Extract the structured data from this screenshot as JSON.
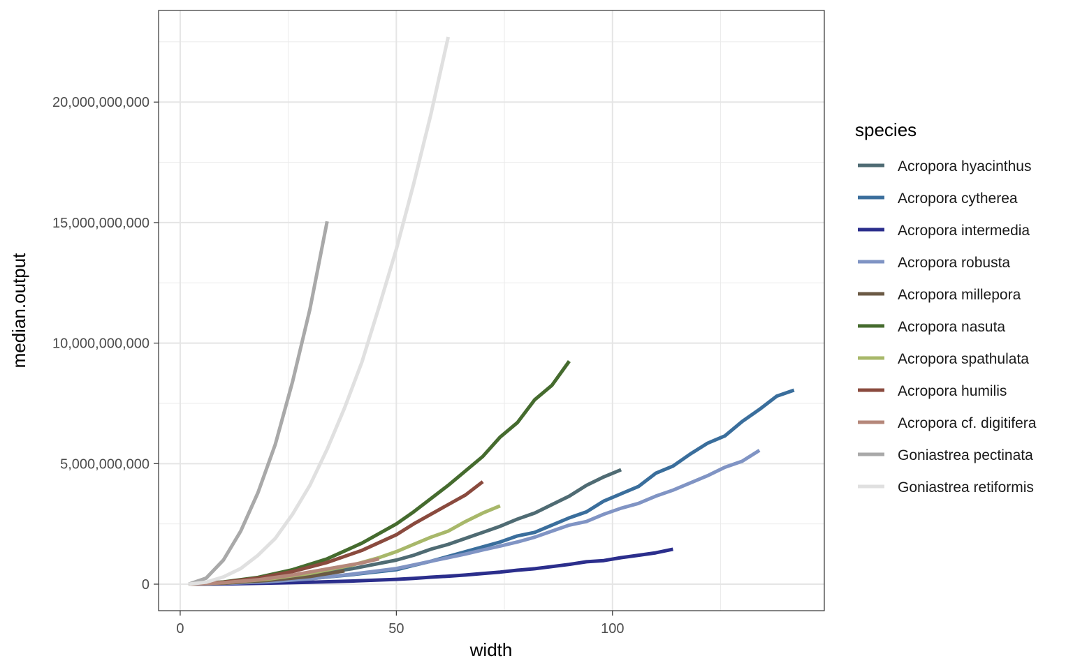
{
  "chart_data": {
    "type": "line",
    "title": "",
    "xlabel": "width",
    "ylabel": "median.output",
    "xlim": [
      -5,
      149
    ],
    "ylim": [
      -1100000000,
      23800000000
    ],
    "x_ticks": [
      0,
      50,
      100
    ],
    "x_tick_labels": [
      "0",
      "50",
      "100"
    ],
    "y_ticks": [
      0,
      5000000000,
      10000000000,
      15000000000,
      20000000000
    ],
    "y_tick_labels": [
      "0",
      "5,000,000,000",
      "10,000,000,000",
      "15,000,000,000",
      "20,000,000,000"
    ],
    "grid": true,
    "legend": {
      "title": "species",
      "position": "right"
    },
    "series": [
      {
        "name": "Acropora hyacinthus",
        "color": "#4f6b73",
        "x": [
          2,
          10,
          20,
          30,
          40,
          50,
          54,
          58,
          62,
          66,
          70,
          74,
          78,
          82,
          86,
          90,
          94,
          98,
          102
        ],
        "y": [
          0,
          60000000,
          180000000,
          380000000,
          650000000,
          1000000000,
          1200000000,
          1450000000,
          1650000000,
          1900000000,
          2150000000,
          2400000000,
          2700000000,
          2950000000,
          3300000000,
          3650000000,
          4100000000,
          4450000000,
          4750000000
        ]
      },
      {
        "name": "Acropora cytherea",
        "color": "#3a6e9c",
        "x": [
          2,
          10,
          20,
          30,
          40,
          50,
          54,
          58,
          62,
          66,
          70,
          74,
          78,
          82,
          86,
          90,
          94,
          98,
          102,
          106,
          110,
          114,
          118,
          122,
          126,
          130,
          134,
          138,
          142
        ],
        "y": [
          0,
          30000000,
          100000000,
          230000000,
          400000000,
          600000000,
          780000000,
          950000000,
          1150000000,
          1350000000,
          1550000000,
          1750000000,
          2000000000,
          2150000000,
          2450000000,
          2750000000,
          3000000000,
          3450000000,
          3750000000,
          4050000000,
          4600000000,
          4900000000,
          5400000000,
          5850000000,
          6150000000,
          6750000000,
          7250000000,
          7800000000,
          8050000000
        ]
      },
      {
        "name": "Acropora intermedia",
        "color": "#2b2e8c",
        "x": [
          2,
          10,
          20,
          30,
          40,
          50,
          54,
          58,
          62,
          66,
          70,
          74,
          78,
          82,
          86,
          90,
          94,
          98,
          102,
          106,
          110,
          114
        ],
        "y": [
          0,
          10000000,
          40000000,
          80000000,
          130000000,
          200000000,
          240000000,
          290000000,
          330000000,
          380000000,
          440000000,
          500000000,
          580000000,
          640000000,
          730000000,
          820000000,
          930000000,
          980000000,
          1100000000,
          1200000000,
          1300000000,
          1450000000
        ]
      },
      {
        "name": "Acropora robusta",
        "color": "#8094c4",
        "x": [
          2,
          10,
          20,
          30,
          40,
          50,
          54,
          58,
          62,
          66,
          70,
          74,
          78,
          82,
          86,
          90,
          94,
          98,
          102,
          106,
          110,
          114,
          118,
          122,
          126,
          130,
          134
        ],
        "y": [
          0,
          30000000,
          100000000,
          220000000,
          420000000,
          650000000,
          800000000,
          950000000,
          1100000000,
          1250000000,
          1420000000,
          1580000000,
          1750000000,
          1950000000,
          2200000000,
          2450000000,
          2600000000,
          2900000000,
          3150000000,
          3350000000,
          3650000000,
          3900000000,
          4200000000,
          4500000000,
          4850000000,
          5100000000,
          5550000000
        ]
      },
      {
        "name": "Acropora millepora",
        "color": "#6b5a45",
        "x": [
          2,
          10,
          20,
          30,
          38
        ],
        "y": [
          0,
          40000000,
          150000000,
          320000000,
          550000000
        ]
      },
      {
        "name": "Acropora nasuta",
        "color": "#456b2e",
        "x": [
          2,
          10,
          18,
          26,
          34,
          42,
          50,
          54,
          58,
          62,
          66,
          70,
          74,
          78,
          82,
          86,
          90
        ],
        "y": [
          0,
          90000000,
          280000000,
          600000000,
          1050000000,
          1700000000,
          2500000000,
          3000000000,
          3550000000,
          4100000000,
          4700000000,
          5300000000,
          6100000000,
          6700000000,
          7650000000,
          8250000000,
          9250000000
        ]
      },
      {
        "name": "Acropora spathulata",
        "color": "#a8b86a",
        "x": [
          2,
          10,
          20,
          30,
          40,
          46,
          50,
          54,
          58,
          62,
          66,
          70,
          74
        ],
        "y": [
          0,
          60000000,
          200000000,
          450000000,
          800000000,
          1100000000,
          1350000000,
          1650000000,
          1950000000,
          2200000000,
          2600000000,
          2950000000,
          3250000000
        ]
      },
      {
        "name": "Acropora humilis",
        "color": "#8a4a3e",
        "x": [
          2,
          10,
          18,
          26,
          34,
          42,
          50,
          54,
          58,
          62,
          66,
          70
        ],
        "y": [
          0,
          80000000,
          250000000,
          520000000,
          900000000,
          1400000000,
          2050000000,
          2500000000,
          2900000000,
          3300000000,
          3700000000,
          4250000000
        ]
      },
      {
        "name": "Acropora cf. digitifera",
        "color": "#b5877a",
        "x": [
          2,
          10,
          18,
          26,
          34,
          42,
          46
        ],
        "y": [
          0,
          60000000,
          180000000,
          380000000,
          630000000,
          880000000,
          1050000000
        ]
      },
      {
        "name": "Goniastrea pectinata",
        "color": "#a9a9a9",
        "x": [
          2,
          6,
          10,
          14,
          18,
          22,
          26,
          30,
          34
        ],
        "y": [
          0,
          250000000,
          1000000000,
          2200000000,
          3800000000,
          5800000000,
          8400000000,
          11400000000,
          15050000000
        ]
      },
      {
        "name": "Goniastrea retiformis",
        "color": "#e0e0e0",
        "x": [
          2,
          6,
          10,
          14,
          18,
          22,
          26,
          30,
          34,
          38,
          42,
          46,
          50,
          54,
          58,
          62
        ],
        "y": [
          0,
          80000000,
          300000000,
          650000000,
          1200000000,
          1900000000,
          2900000000,
          4100000000,
          5600000000,
          7300000000,
          9200000000,
          11500000000,
          13900000000,
          16600000000,
          19500000000,
          22700000000
        ]
      }
    ]
  }
}
